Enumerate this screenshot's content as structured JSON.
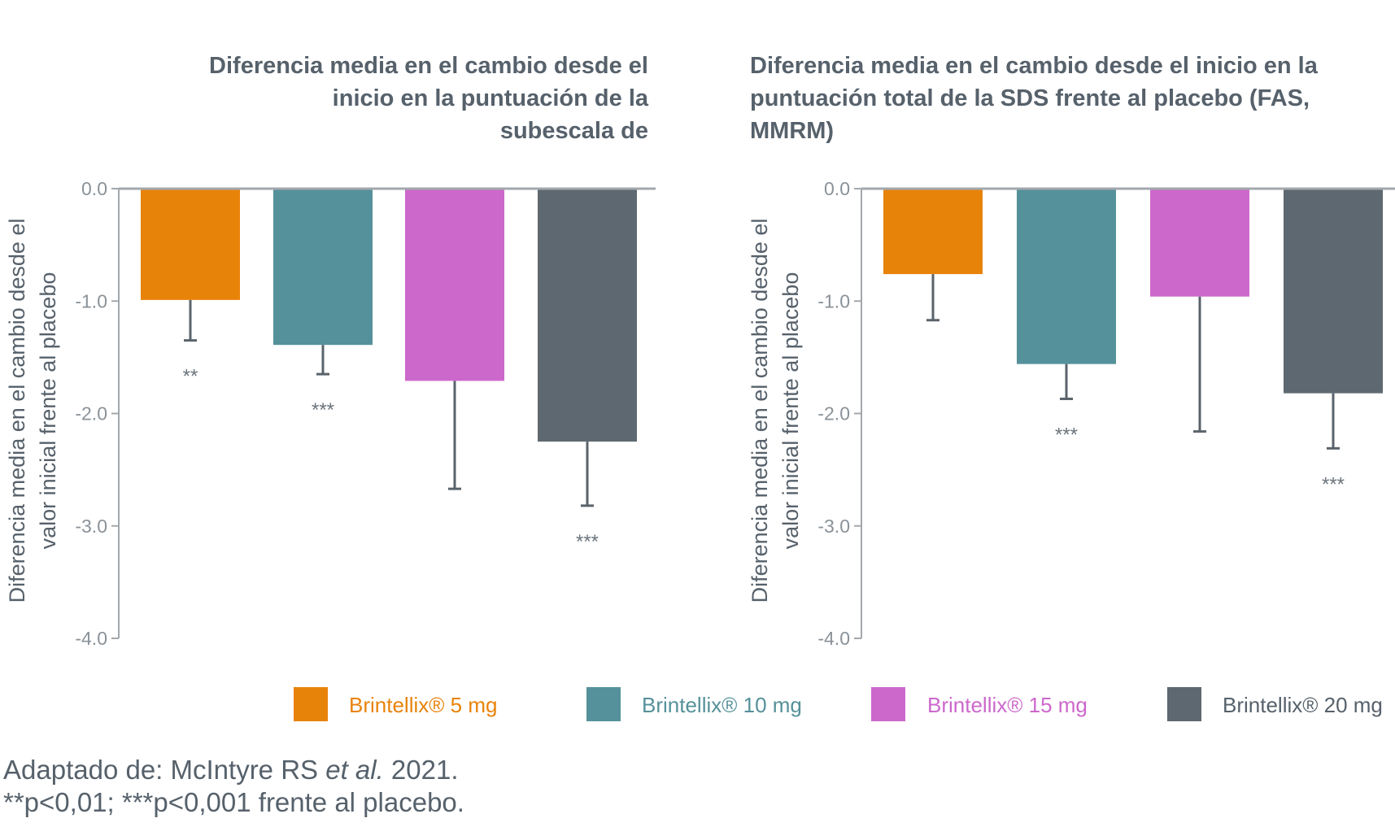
{
  "chart_data": [
    {
      "type": "bar",
      "title_lines": [
        "Diferencia media en el cambio desde el",
        "inicio en la puntuación de la",
        "subescala de"
      ],
      "ylabel_lines": [
        "Diferencia media en el cambio desde el",
        "valor inicial frente al placebo"
      ],
      "ylim": [
        -4.0,
        0.0
      ],
      "yticks": [
        "0.0",
        "-1.0",
        "-2.0",
        "-3.0",
        "-4.0"
      ],
      "series": [
        {
          "name": "Brintellix® 5 mg",
          "value": -0.99,
          "error_end": -1.35,
          "significance": "**"
        },
        {
          "name": "Brintellix® 10 mg",
          "value": -1.39,
          "error_end": -1.65,
          "significance": "***"
        },
        {
          "name": "Brintellix® 15 mg",
          "value": -1.71,
          "error_end": -2.67,
          "significance": ""
        },
        {
          "name": "Brintellix® 20 mg",
          "value": -2.25,
          "error_end": -2.82,
          "significance": "***"
        }
      ]
    },
    {
      "type": "bar",
      "title_lines": [
        "Diferencia media en el cambio desde el inicio en la",
        "puntuación total de la SDS frente al placebo (FAS,",
        "MMRM)"
      ],
      "ylabel_lines": [
        "Diferencia media en el cambio desde el",
        "valor inicial frente al placebo"
      ],
      "ylim": [
        -4.0,
        0.0
      ],
      "yticks": [
        "0.0",
        "-1.0",
        "-2.0",
        "-3.0",
        "-4.0"
      ],
      "series": [
        {
          "name": "Brintellix® 5 mg",
          "value": -0.76,
          "error_end": -1.17,
          "significance": ""
        },
        {
          "name": "Brintellix® 10 mg",
          "value": -1.56,
          "error_end": -1.87,
          "significance": "***"
        },
        {
          "name": "Brintellix® 15 mg",
          "value": -0.96,
          "error_end": -2.16,
          "significance": ""
        },
        {
          "name": "Brintellix® 20 mg",
          "value": -1.82,
          "error_end": -2.31,
          "significance": "***"
        }
      ]
    }
  ],
  "legend": [
    {
      "label": "Brintellix® 5 mg",
      "color": "#e8830a"
    },
    {
      "label": "Brintellix® 10 mg",
      "color": "#55919a"
    },
    {
      "label": "Brintellix® 15 mg",
      "color": "#cc68cc"
    },
    {
      "label": "Brintellix® 20 mg",
      "color": "#5e6870"
    }
  ],
  "footnotes": {
    "source_prefix": "Adaptado de: McIntyre RS ",
    "source_italic": "et al.",
    "source_suffix": " 2021.",
    "significance_note": "**p<0,01; ***p<0,001 frente al placebo."
  }
}
